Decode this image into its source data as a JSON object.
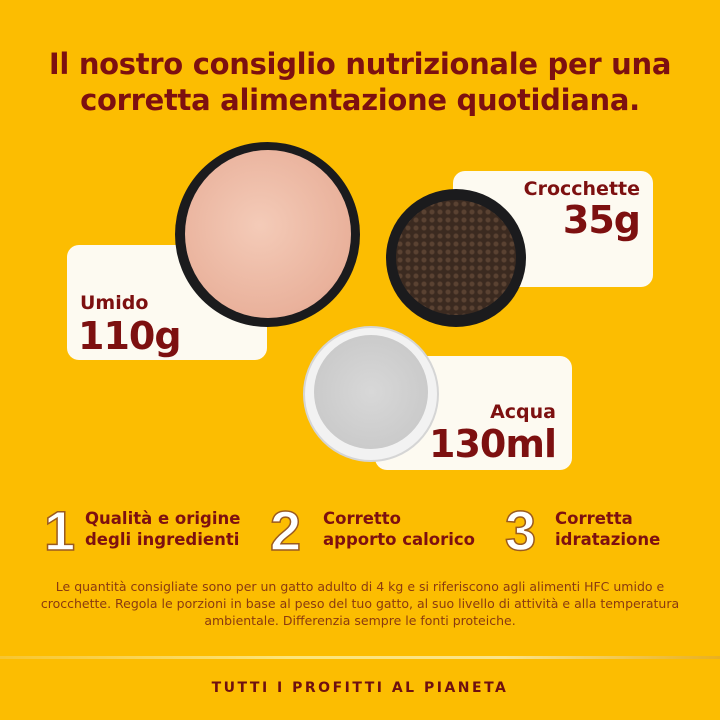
{
  "title": {
    "line1": "Il nostro consiglio nutrizionale per una",
    "line2": "corretta alimentazione quotidiana."
  },
  "portions": [
    {
      "label": "Umido",
      "value": "110g"
    },
    {
      "label": "Crocchette",
      "value": "35g"
    },
    {
      "label": "Acqua",
      "value": "130ml"
    }
  ],
  "features": [
    {
      "number": "1",
      "line1": "Qualità e origine",
      "line2": "degli ingredienti"
    },
    {
      "number": "2",
      "line1": "Corretto",
      "line2": "apporto calorico"
    },
    {
      "number": "3",
      "line1": "Corretta",
      "line2": "idratazione"
    }
  ],
  "disclaimer": "Le quantità consigliate sono per un gatto adulto di 4 kg e si riferiscono agli alimenti HFC umido e crocchette. Regola le porzioni in base al peso del tuo gatto, al suo livello di attività e alla temperatura ambientale. Differenzia sempre le fonti proteiche.",
  "footer": "TUTTI I PROFITTI AL PIANETA",
  "colors": {
    "background": "#fcbd01",
    "text": "#7d1010",
    "card": "#fdfaf1"
  }
}
